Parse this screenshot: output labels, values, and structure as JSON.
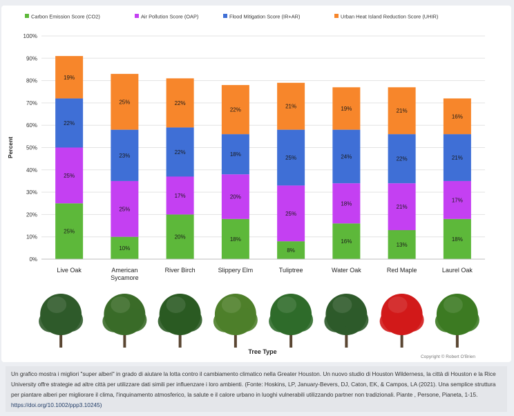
{
  "chart_data": {
    "type": "bar",
    "stacked": true,
    "categories": [
      "Live Oak",
      "American Sycamore",
      "River Birch",
      "Slippery Elm",
      "Tuliptree",
      "Water Oak",
      "Red Maple",
      "Laurel Oak"
    ],
    "series": [
      {
        "name": "Carbon Emission Score (CO2)",
        "color": "#5db83a",
        "values": [
          25,
          10,
          20,
          18,
          8,
          16,
          13,
          18
        ],
        "labels": [
          "25%",
          "10%",
          "20%",
          "18%",
          "8%",
          "16%",
          "13%",
          "18%"
        ]
      },
      {
        "name": "Air Pollution Score (OAP)",
        "color": "#c440f2",
        "values": [
          25,
          25,
          17,
          20,
          25,
          18,
          21,
          17
        ],
        "labels": [
          "25%",
          "25%",
          "17%",
          "20%",
          "25%",
          "18%",
          "21%",
          "17%"
        ]
      },
      {
        "name": "Flood Mitigation Score (IR+AR)",
        "color": "#3f6fd6",
        "values": [
          22,
          23,
          22,
          18,
          25,
          24,
          22,
          21
        ],
        "labels": [
          "22%",
          "23%",
          "22%",
          "18%",
          "25%",
          "24%",
          "22%",
          "21%"
        ]
      },
      {
        "name": "Urban Heat Island Reduction Score (UHIR)",
        "color": "#f7862b",
        "values": [
          19,
          25,
          22,
          22,
          21,
          19,
          21,
          16
        ],
        "labels": [
          "19%",
          "25%",
          "22%",
          "22%",
          "21%",
          "19%",
          "21%",
          "16%"
        ]
      }
    ],
    "yticks": [
      "0%",
      "10%",
      "20%",
      "30%",
      "40%",
      "50%",
      "60%",
      "70%",
      "80%",
      "90%",
      "100%"
    ],
    "ylim": [
      0,
      100
    ],
    "ylabel": "Percent",
    "xlabel": "Tree Type",
    "legend_position": "top",
    "grid": true,
    "tree_icons": [
      "tree-icon",
      "tree-icon",
      "tree-icon",
      "tree-icon",
      "tree-icon",
      "tree-icon",
      "red-maple-tree-icon",
      "tree-icon"
    ],
    "tree_colors": [
      "#2f5a2a",
      "#3a6b28",
      "#2a5a22",
      "#4e7f2a",
      "#2f6b2a",
      "#2e5a2a",
      "#d11a1a",
      "#3c7a22"
    ]
  },
  "copyright": "Copyright © Robert O'Brien",
  "caption": {
    "text": "Un grafico mostra i migliori \"super alberi\" in grado di aiutare la lotta contro il cambiamento climatico nella Greater Houston. Un nuovo studio di Houston Wilderness, la città di Houston e la Rice University offre strategie ad altre città per utilizzare dati simili per influenzare i loro ambienti. (Fonte: Hoskins, LP, January-Bevers, DJ, Caton, EK, & Campos, LA (2021). Una semplice struttura per piantare alberi per migliorare il clima, l'inquinamento atmosferico, la salute e il calore urbano in luoghi vulnerabili utilizzando partner non tradizionali. Piante , Persone, Pianeta, 1-15.",
    "link": "https://doi.org/10.1002/ppp3.10245)"
  }
}
